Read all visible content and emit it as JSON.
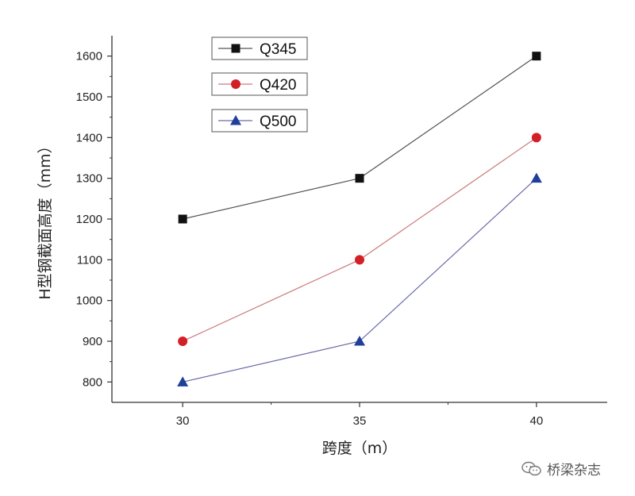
{
  "chart_data": {
    "type": "line",
    "title": "",
    "xlabel": "跨度（m）",
    "ylabel": "H型钢截面高度（mm）",
    "x": [
      30,
      35,
      40
    ],
    "xlim": [
      28,
      42
    ],
    "ylim": [
      750,
      1650
    ],
    "x_ticks": [
      30,
      35,
      40
    ],
    "y_ticks": [
      800,
      900,
      1000,
      1100,
      1200,
      1300,
      1400,
      1500,
      1600
    ],
    "grid": false,
    "legend_position": "top-left",
    "series": [
      {
        "name": "Q345",
        "values": [
          1200,
          1300,
          1600
        ],
        "color": "#111111",
        "line_color": "#555555",
        "marker": "square"
      },
      {
        "name": "Q420",
        "values": [
          900,
          1100,
          1400
        ],
        "color": "#d41f26",
        "line_color": "#c97a7a",
        "marker": "circle"
      },
      {
        "name": "Q500",
        "values": [
          800,
          900,
          1300
        ],
        "color": "#1f3f9a",
        "line_color": "#6a6aa8",
        "marker": "triangle"
      }
    ]
  },
  "watermark": {
    "text": "桥梁杂志",
    "icon": "wechat-icon"
  }
}
